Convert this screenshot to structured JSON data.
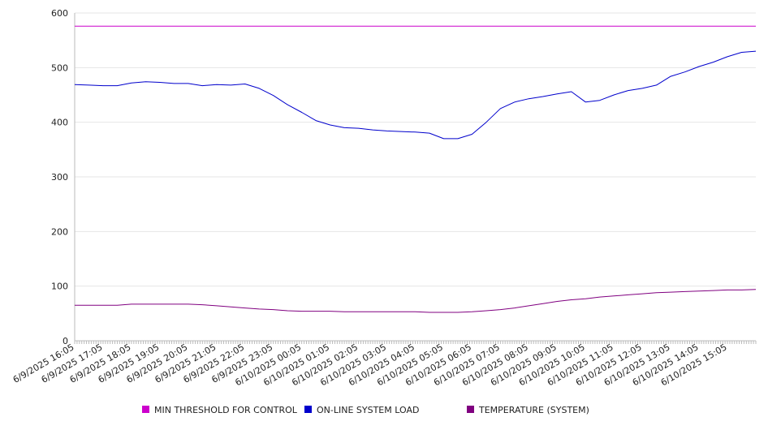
{
  "chart_data": {
    "type": "line",
    "title": "",
    "xlabel": "",
    "ylabel": "",
    "ylim": [
      0,
      600
    ],
    "y_ticks": [
      0,
      100,
      200,
      300,
      400,
      500,
      600
    ],
    "grid": "horizontal",
    "legend_position": "bottom",
    "x_tick_labels": [
      "6/9/2025 16:05",
      "6/9/2025 17:05",
      "6/9/2025 18:05",
      "6/9/2025 19:05",
      "6/9/2025 20:05",
      "6/9/2025 21:05",
      "6/9/2025 22:05",
      "6/9/2025 23:05",
      "6/10/2025 00:05",
      "6/10/2025 01:05",
      "6/10/2025 02:05",
      "6/10/2025 03:05",
      "6/10/2025 04:05",
      "6/10/2025 05:05",
      "6/10/2025 06:05",
      "6/10/2025 07:05",
      "6/10/2025 08:05",
      "6/10/2025 09:05",
      "6/10/2025 10:05",
      "6/10/2025 11:05",
      "6/10/2025 12:05",
      "6/10/2025 13:05",
      "6/10/2025 14:05",
      "6/10/2025 15:05"
    ],
    "x_time_labels": [
      "6/9/2025 16:05",
      "6/9/2025 16:35",
      "6/9/2025 17:05",
      "6/9/2025 17:35",
      "6/9/2025 18:05",
      "6/9/2025 18:35",
      "6/9/2025 19:05",
      "6/9/2025 19:35",
      "6/9/2025 20:05",
      "6/9/2025 20:35",
      "6/9/2025 21:05",
      "6/9/2025 21:35",
      "6/9/2025 22:05",
      "6/9/2025 22:35",
      "6/9/2025 23:05",
      "6/9/2025 23:35",
      "6/10/2025 00:05",
      "6/10/2025 00:35",
      "6/10/2025 01:05",
      "6/10/2025 01:35",
      "6/10/2025 02:05",
      "6/10/2025 02:35",
      "6/10/2025 03:05",
      "6/10/2025 03:35",
      "6/10/2025 04:05",
      "6/10/2025 04:35",
      "6/10/2025 05:05",
      "6/10/2025 05:35",
      "6/10/2025 06:05",
      "6/10/2025 06:35",
      "6/10/2025 07:05",
      "6/10/2025 07:35",
      "6/10/2025 08:05",
      "6/10/2025 08:35",
      "6/10/2025 09:05",
      "6/10/2025 09:35",
      "6/10/2025 10:05",
      "6/10/2025 10:35",
      "6/10/2025 11:05",
      "6/10/2025 11:35",
      "6/10/2025 12:05",
      "6/10/2025 12:35",
      "6/10/2025 13:05",
      "6/10/2025 13:35",
      "6/10/2025 14:05",
      "6/10/2025 14:35",
      "6/10/2025 15:05",
      "6/10/2025 15:35",
      "6/10/2025 16:05"
    ],
    "series": [
      {
        "name": "MIN THRESHOLD FOR CONTROL",
        "color": "#cc00cc",
        "values": [
          576,
          576,
          576,
          576,
          576,
          576,
          576,
          576,
          576,
          576,
          576,
          576,
          576,
          576,
          576,
          576,
          576,
          576,
          576,
          576,
          576,
          576,
          576,
          576,
          576,
          576,
          576,
          576,
          576,
          576,
          576,
          576,
          576,
          576,
          576,
          576,
          576,
          576,
          576,
          576,
          576,
          576,
          576,
          576,
          576,
          576,
          576,
          576,
          576
        ]
      },
      {
        "name": "ON-LINE SYSTEM LOAD",
        "color": "#0000cc",
        "values": [
          469,
          468,
          467,
          467,
          472,
          474,
          473,
          471,
          471,
          467,
          469,
          468,
          470,
          462,
          449,
          432,
          418,
          403,
          395,
          390,
          389,
          386,
          384,
          383,
          382,
          380,
          370,
          370,
          378,
          400,
          425,
          437,
          443,
          447,
          452,
          456,
          437,
          440,
          450,
          458,
          462,
          468,
          484,
          492,
          502,
          510,
          520,
          528,
          530
        ]
      },
      {
        "name": "TEMPERATURE (SYSTEM)",
        "color": "#800080",
        "values": [
          65,
          65,
          65,
          65,
          67,
          67,
          67,
          67,
          67,
          66,
          64,
          62,
          60,
          58,
          57,
          55,
          54,
          54,
          54,
          53,
          53,
          53,
          53,
          53,
          53,
          52,
          52,
          52,
          53,
          55,
          57,
          60,
          64,
          68,
          72,
          75,
          77,
          80,
          82,
          84,
          86,
          88,
          89,
          90,
          91,
          92,
          93,
          93,
          94
        ]
      }
    ]
  }
}
